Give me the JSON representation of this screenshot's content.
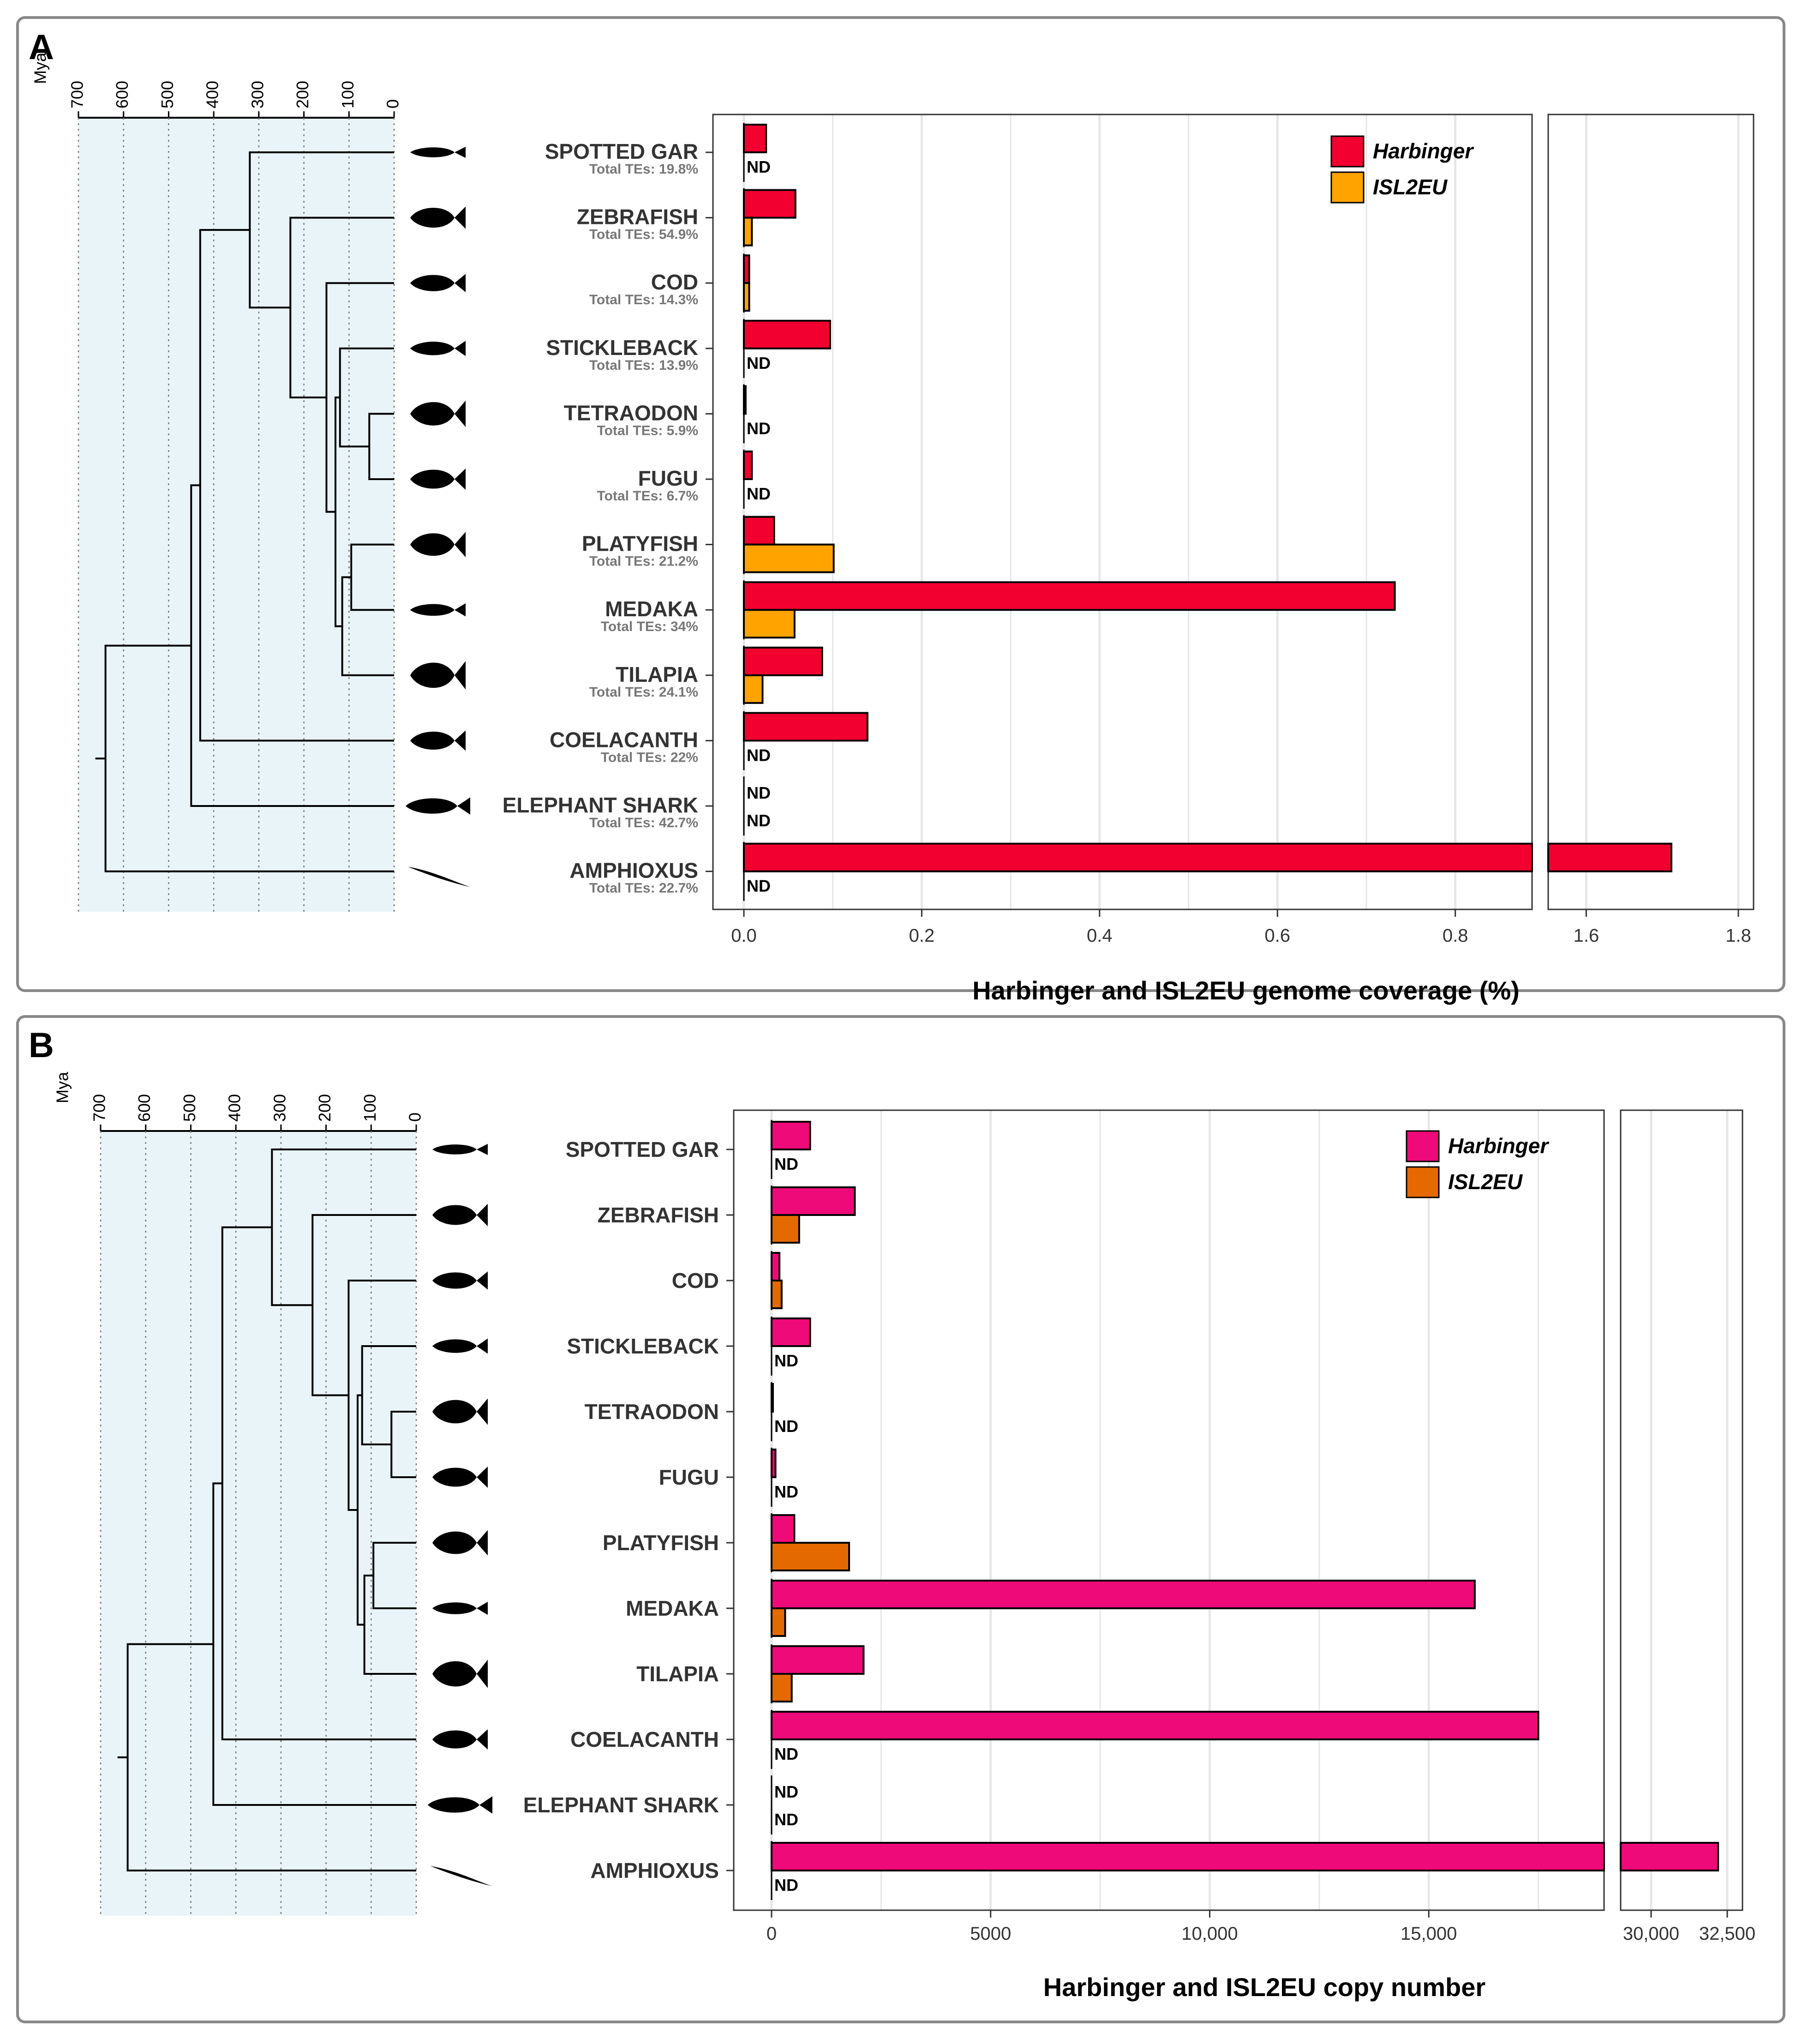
{
  "colors": {
    "harbinger_a": "#F2002F",
    "isl2eu_a": "#FFA300",
    "harbinger_b": "#EE0A78",
    "isl2eu_b": "#E46A00",
    "tree_bg": "#E8F4F8",
    "grid": "#E6E6E6",
    "panel_border": "#888888"
  },
  "species_icons": [
    "gar-silhouette",
    "zebrafish-silhouette",
    "cod-silhouette",
    "stickleback-silhouette",
    "tetraodon-silhouette",
    "fugu-silhouette",
    "platyfish-silhouette",
    "medaka-silhouette",
    "tilapia-silhouette",
    "coelacanth-silhouette",
    "elephant-shark-silhouette",
    "amphioxus-silhouette"
  ],
  "nd_label": "ND",
  "chart_data": [
    {
      "panel": "A",
      "type": "bar",
      "orientation": "horizontal",
      "mya_label": "Mya",
      "tree_ticks": [
        "700",
        "600",
        "500",
        "400",
        "300",
        "200",
        "100",
        "0"
      ],
      "categories": [
        "SPOTTED GAR",
        "ZEBRAFISH",
        "COD",
        "STICKLEBACK",
        "TETRAODON",
        "FUGU",
        "PLATYFISH",
        "MEDAKA",
        "TILAPIA",
        "COELACANTH",
        "ELEPHANT SHARK",
        "AMPHIOXUS"
      ],
      "total_tes": [
        "Total TEs: 19.8%",
        "Total TEs: 54.9%",
        "Total TEs: 14.3%",
        "Total TEs: 13.9%",
        "Total TEs: 5.9%",
        "Total TEs: 6.7%",
        "Total TEs: 21.2%",
        "Total TEs: 34%",
        "Total TEs: 24.1%",
        "Total TEs: 22%",
        "Total TEs: 42.7%",
        "Total TEs: 22.7%"
      ],
      "series": [
        {
          "name": "Harbinger",
          "values": [
            0.025,
            0.058,
            0.006,
            0.097,
            0.002,
            0.009,
            0.034,
            0.732,
            0.088,
            0.139,
            null,
            1.712
          ]
        },
        {
          "name": "ISL2EU",
          "values": [
            null,
            0.009,
            0.006,
            null,
            null,
            null,
            0.101,
            0.057,
            0.021,
            null,
            null,
            null
          ]
        }
      ],
      "xlabel": "Harbinger and ISL2EU genome coverage (%)",
      "xlim_main": [
        0,
        0.85
      ],
      "xlim_break": [
        1.55,
        1.82
      ],
      "xticks_main": [
        0,
        0.2,
        0.4,
        0.6,
        0.8
      ],
      "xtick_labels_main": [
        "0.0",
        "0.2",
        "0.4",
        "0.6",
        "0.8"
      ],
      "xticks_break": [
        1.6,
        1.8
      ],
      "xtick_labels_break": [
        "1.6",
        "1.8"
      ],
      "legend": [
        "Harbinger",
        "ISL2EU"
      ],
      "legend_position": "top-right"
    },
    {
      "panel": "B",
      "type": "bar",
      "orientation": "horizontal",
      "mya_label": "Mya",
      "tree_ticks": [
        "700",
        "600",
        "500",
        "400",
        "300",
        "200",
        "100",
        "0"
      ],
      "categories": [
        "SPOTTED GAR",
        "ZEBRAFISH",
        "COD",
        "STICKLEBACK",
        "TETRAODON",
        "FUGU",
        "PLATYFISH",
        "MEDAKA",
        "TILAPIA",
        "COELACANTH",
        "ELEPHANT SHARK",
        "AMPHIOXUS"
      ],
      "series": [
        {
          "name": "Harbinger",
          "values": [
            880,
            1900,
            180,
            880,
            25,
            90,
            520,
            16050,
            2100,
            17500,
            null,
            32200
          ]
        },
        {
          "name": "ISL2EU",
          "values": [
            null,
            630,
            230,
            null,
            null,
            null,
            1770,
            310,
            460,
            null,
            null,
            null
          ]
        }
      ],
      "xlabel": "Harbinger and ISL2EU copy number",
      "xlim_main": [
        0,
        19000
      ],
      "xlim_break": [
        29000,
        33000
      ],
      "xticks_main": [
        0,
        5000,
        10000,
        15000
      ],
      "xtick_labels_main": [
        "0",
        "5000",
        "10,000",
        "15,000"
      ],
      "xticks_break": [
        30000,
        32500
      ],
      "xtick_labels_break": [
        "30,000",
        "32,500"
      ],
      "legend": [
        "Harbinger",
        "ISL2EU"
      ],
      "legend_position": "top-right"
    }
  ]
}
